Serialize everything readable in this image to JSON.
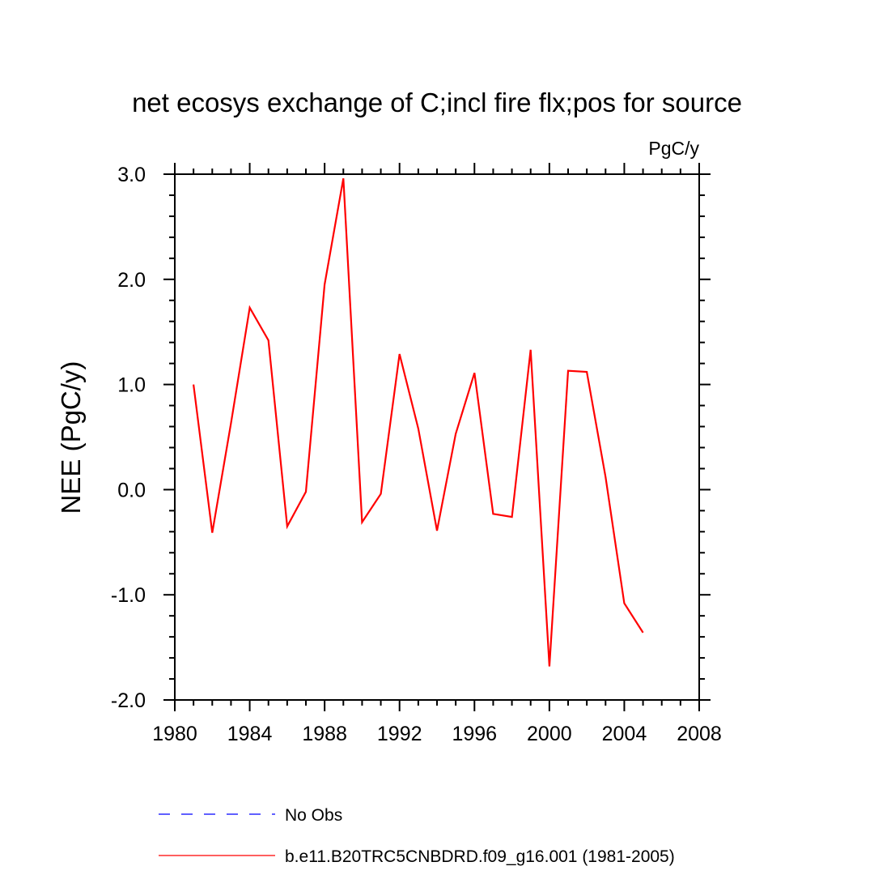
{
  "chart_data": {
    "type": "line",
    "title": "net ecosys exchange of C;incl fire flx;pos for source",
    "units": "PgC/y",
    "xlabel": "",
    "ylabel": "NEE  (PgC/y)",
    "xlim": [
      1980,
      2008
    ],
    "ylim": [
      -2.0,
      3.0
    ],
    "x_ticks": [
      1980,
      1984,
      1988,
      1992,
      1996,
      2000,
      2004,
      2008
    ],
    "x_tick_labels": [
      "1980",
      "1984",
      "1988",
      "1992",
      "1996",
      "2000",
      "2004",
      "2008"
    ],
    "y_ticks": [
      -2.0,
      -1.0,
      0.0,
      1.0,
      2.0,
      3.0
    ],
    "y_tick_labels": [
      "-2.0",
      "-1.0",
      "0.0",
      "1.0",
      "2.0",
      "3.0"
    ],
    "grid": false,
    "legend_position": "bottom-left",
    "series": [
      {
        "name": "No Obs",
        "color": "#0000ff",
        "style": "dashed",
        "x": [],
        "values": []
      },
      {
        "name": "b.e11.B20TRC5CNBDRD.f09_g16.001 (1981-2005)",
        "color": "#ff0000",
        "style": "solid",
        "x": [
          1981,
          1982,
          1983,
          1984,
          1985,
          1986,
          1987,
          1988,
          1989,
          1990,
          1991,
          1992,
          1993,
          1994,
          1995,
          1996,
          1997,
          1998,
          1999,
          2000,
          2001,
          2002,
          2003,
          2004,
          2005
        ],
        "values": [
          1.0,
          -0.41,
          0.63,
          1.73,
          1.42,
          -0.35,
          -0.02,
          1.95,
          2.96,
          -0.31,
          -0.04,
          1.29,
          0.58,
          -0.39,
          0.53,
          1.11,
          -0.23,
          -0.26,
          1.33,
          -1.68,
          1.13,
          1.12,
          0.12,
          -1.08,
          -1.36
        ]
      }
    ]
  }
}
